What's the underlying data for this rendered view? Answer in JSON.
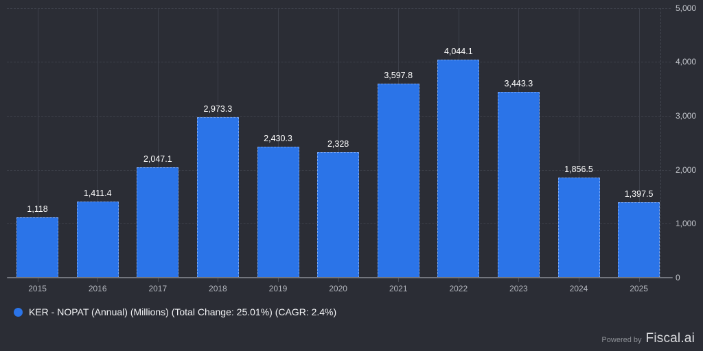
{
  "chart_data": {
    "type": "bar",
    "title": "",
    "xlabel": "",
    "ylabel": "",
    "categories": [
      "2015",
      "2016",
      "2017",
      "2018",
      "2019",
      "2020",
      "2021",
      "2022",
      "2023",
      "2024",
      "2025"
    ],
    "values": [
      1118,
      1411.4,
      2047.1,
      2973.3,
      2430.3,
      2328,
      3597.8,
      4044.1,
      3443.3,
      1856.5,
      1397.5
    ],
    "value_labels": [
      "1,118",
      "1,411.4",
      "2,047.1",
      "2,973.3",
      "2,430.3",
      "2,328",
      "3,597.8",
      "4,044.1",
      "3,443.3",
      "1,856.5",
      "1,397.5"
    ],
    "ylim": [
      0,
      5000
    ],
    "y_ticks": [
      0,
      1000,
      2000,
      3000,
      4000,
      5000
    ],
    "y_tick_labels": [
      "0",
      "1,000",
      "2,000",
      "3,000",
      "4,000",
      "5,000"
    ],
    "grid": true,
    "legend_position": "bottom-left",
    "bar_color": "#2b74e8"
  },
  "legend": {
    "label": "KER - NOPAT (Annual) (Millions) (Total Change: 25.01%) (CAGR: 2.4%)",
    "marker_color": "#2b74e8"
  },
  "footer": {
    "powered_by": "Powered by",
    "brand": "Fiscal.ai"
  },
  "colors": {
    "background": "#2b2d35",
    "bar": "#2b74e8",
    "grid_horizontal": "#3e414b",
    "grid_vertical": "#3d404a",
    "axis_line": "#73767e",
    "value_label": "#ffffff",
    "x_label": "#b5b8bf",
    "y_label": "#c5c8ce"
  }
}
